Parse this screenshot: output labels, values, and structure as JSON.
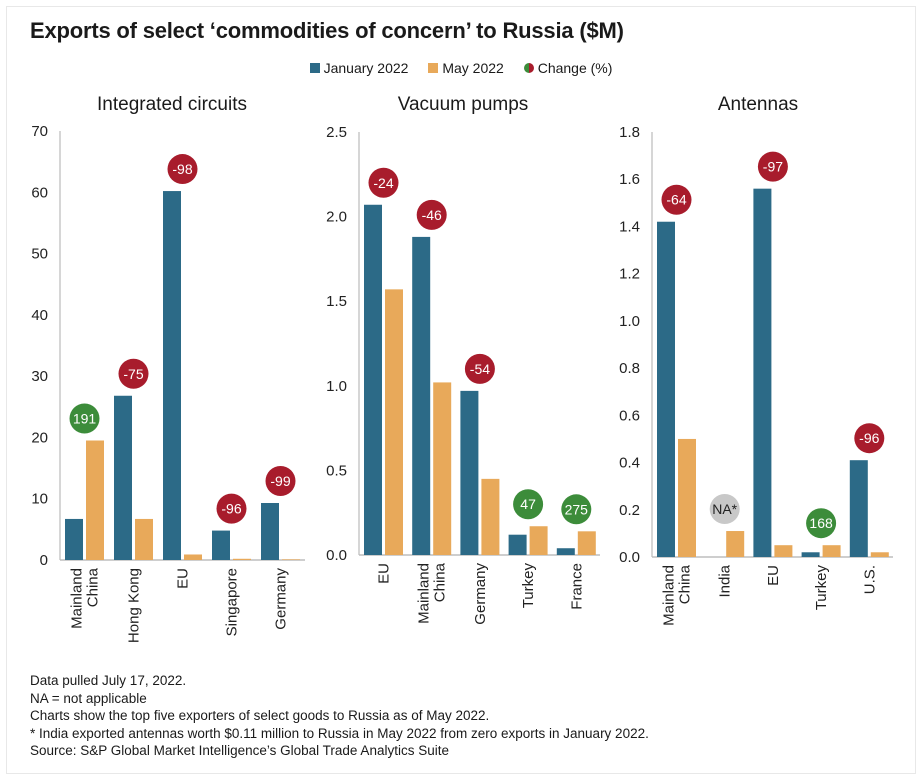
{
  "title": "Exports of select ‘commodities of concern’ to Russia ($M)",
  "legend": {
    "jan": "January 2022",
    "may": "May 2022",
    "change": "Change (%)"
  },
  "colors": {
    "jan": "#2c6a87",
    "may": "#e8a95a",
    "neg": "#a81c2c",
    "pos": "#3c8c3a",
    "na": "#c8c8c8"
  },
  "chart_data": [
    {
      "type": "bar",
      "title": "Integrated circuits",
      "ylim": [
        0,
        70
      ],
      "yticks": [
        "0",
        "10",
        "20",
        "30",
        "40",
        "50",
        "60",
        "70"
      ],
      "categories": [
        [
          "Mainland",
          "China"
        ],
        [
          "Hong Kong"
        ],
        [
          "EU"
        ],
        [
          "Singapore"
        ],
        [
          "Germany"
        ]
      ],
      "series": [
        {
          "name": "January 2022",
          "values": [
            6.7,
            26.8,
            60.2,
            4.8,
            9.3
          ]
        },
        {
          "name": "May 2022",
          "values": [
            19.5,
            6.7,
            0.9,
            0.2,
            0.1
          ]
        }
      ],
      "change": [
        "191",
        "-75",
        "-98",
        "-96",
        "-99"
      ]
    },
    {
      "type": "bar",
      "title": "Vacuum pumps",
      "ylim": [
        0,
        2.5
      ],
      "yticks": [
        "0.0",
        "0.5",
        "1.0",
        "1.5",
        "2.0",
        "2.5"
      ],
      "categories": [
        [
          "EU"
        ],
        [
          "Mainland",
          "China"
        ],
        [
          "Germany"
        ],
        [
          "Turkey"
        ],
        [
          "France"
        ]
      ],
      "series": [
        {
          "name": "January 2022",
          "values": [
            2.07,
            1.88,
            0.97,
            0.12,
            0.04
          ]
        },
        {
          "name": "May 2022",
          "values": [
            1.57,
            1.02,
            0.45,
            0.17,
            0.14
          ]
        }
      ],
      "change": [
        "-24",
        "-46",
        "-54",
        "47",
        "275"
      ]
    },
    {
      "type": "bar",
      "title": "Antennas",
      "ylim": [
        0,
        1.8
      ],
      "yticks": [
        "0.0",
        "0.2",
        "0.4",
        "0.6",
        "0.8",
        "1.0",
        "1.2",
        "1.4",
        "1.6",
        "1.8"
      ],
      "categories": [
        [
          "Mainland",
          "China"
        ],
        [
          "India"
        ],
        [
          "EU"
        ],
        [
          "Turkey"
        ],
        [
          "U.S."
        ]
      ],
      "series": [
        {
          "name": "January 2022",
          "values": [
            1.42,
            0,
            1.56,
            0.02,
            0.41
          ]
        },
        {
          "name": "May 2022",
          "values": [
            0.5,
            0.11,
            0.05,
            0.05,
            0.02
          ]
        }
      ],
      "change": [
        "-64",
        "NA*",
        "-97",
        "168",
        "-96"
      ]
    }
  ],
  "notes": [
    "Data pulled July 17, 2022.",
    "NA = not applicable",
    "Charts show the top five exporters of select goods to Russia as of May 2022.",
    "* India exported antennas worth $0.11 million to Russia in May 2022 from zero exports in January 2022.",
    "Source: S&P Global Market Intelligence’s Global Trade Analytics Suite"
  ]
}
